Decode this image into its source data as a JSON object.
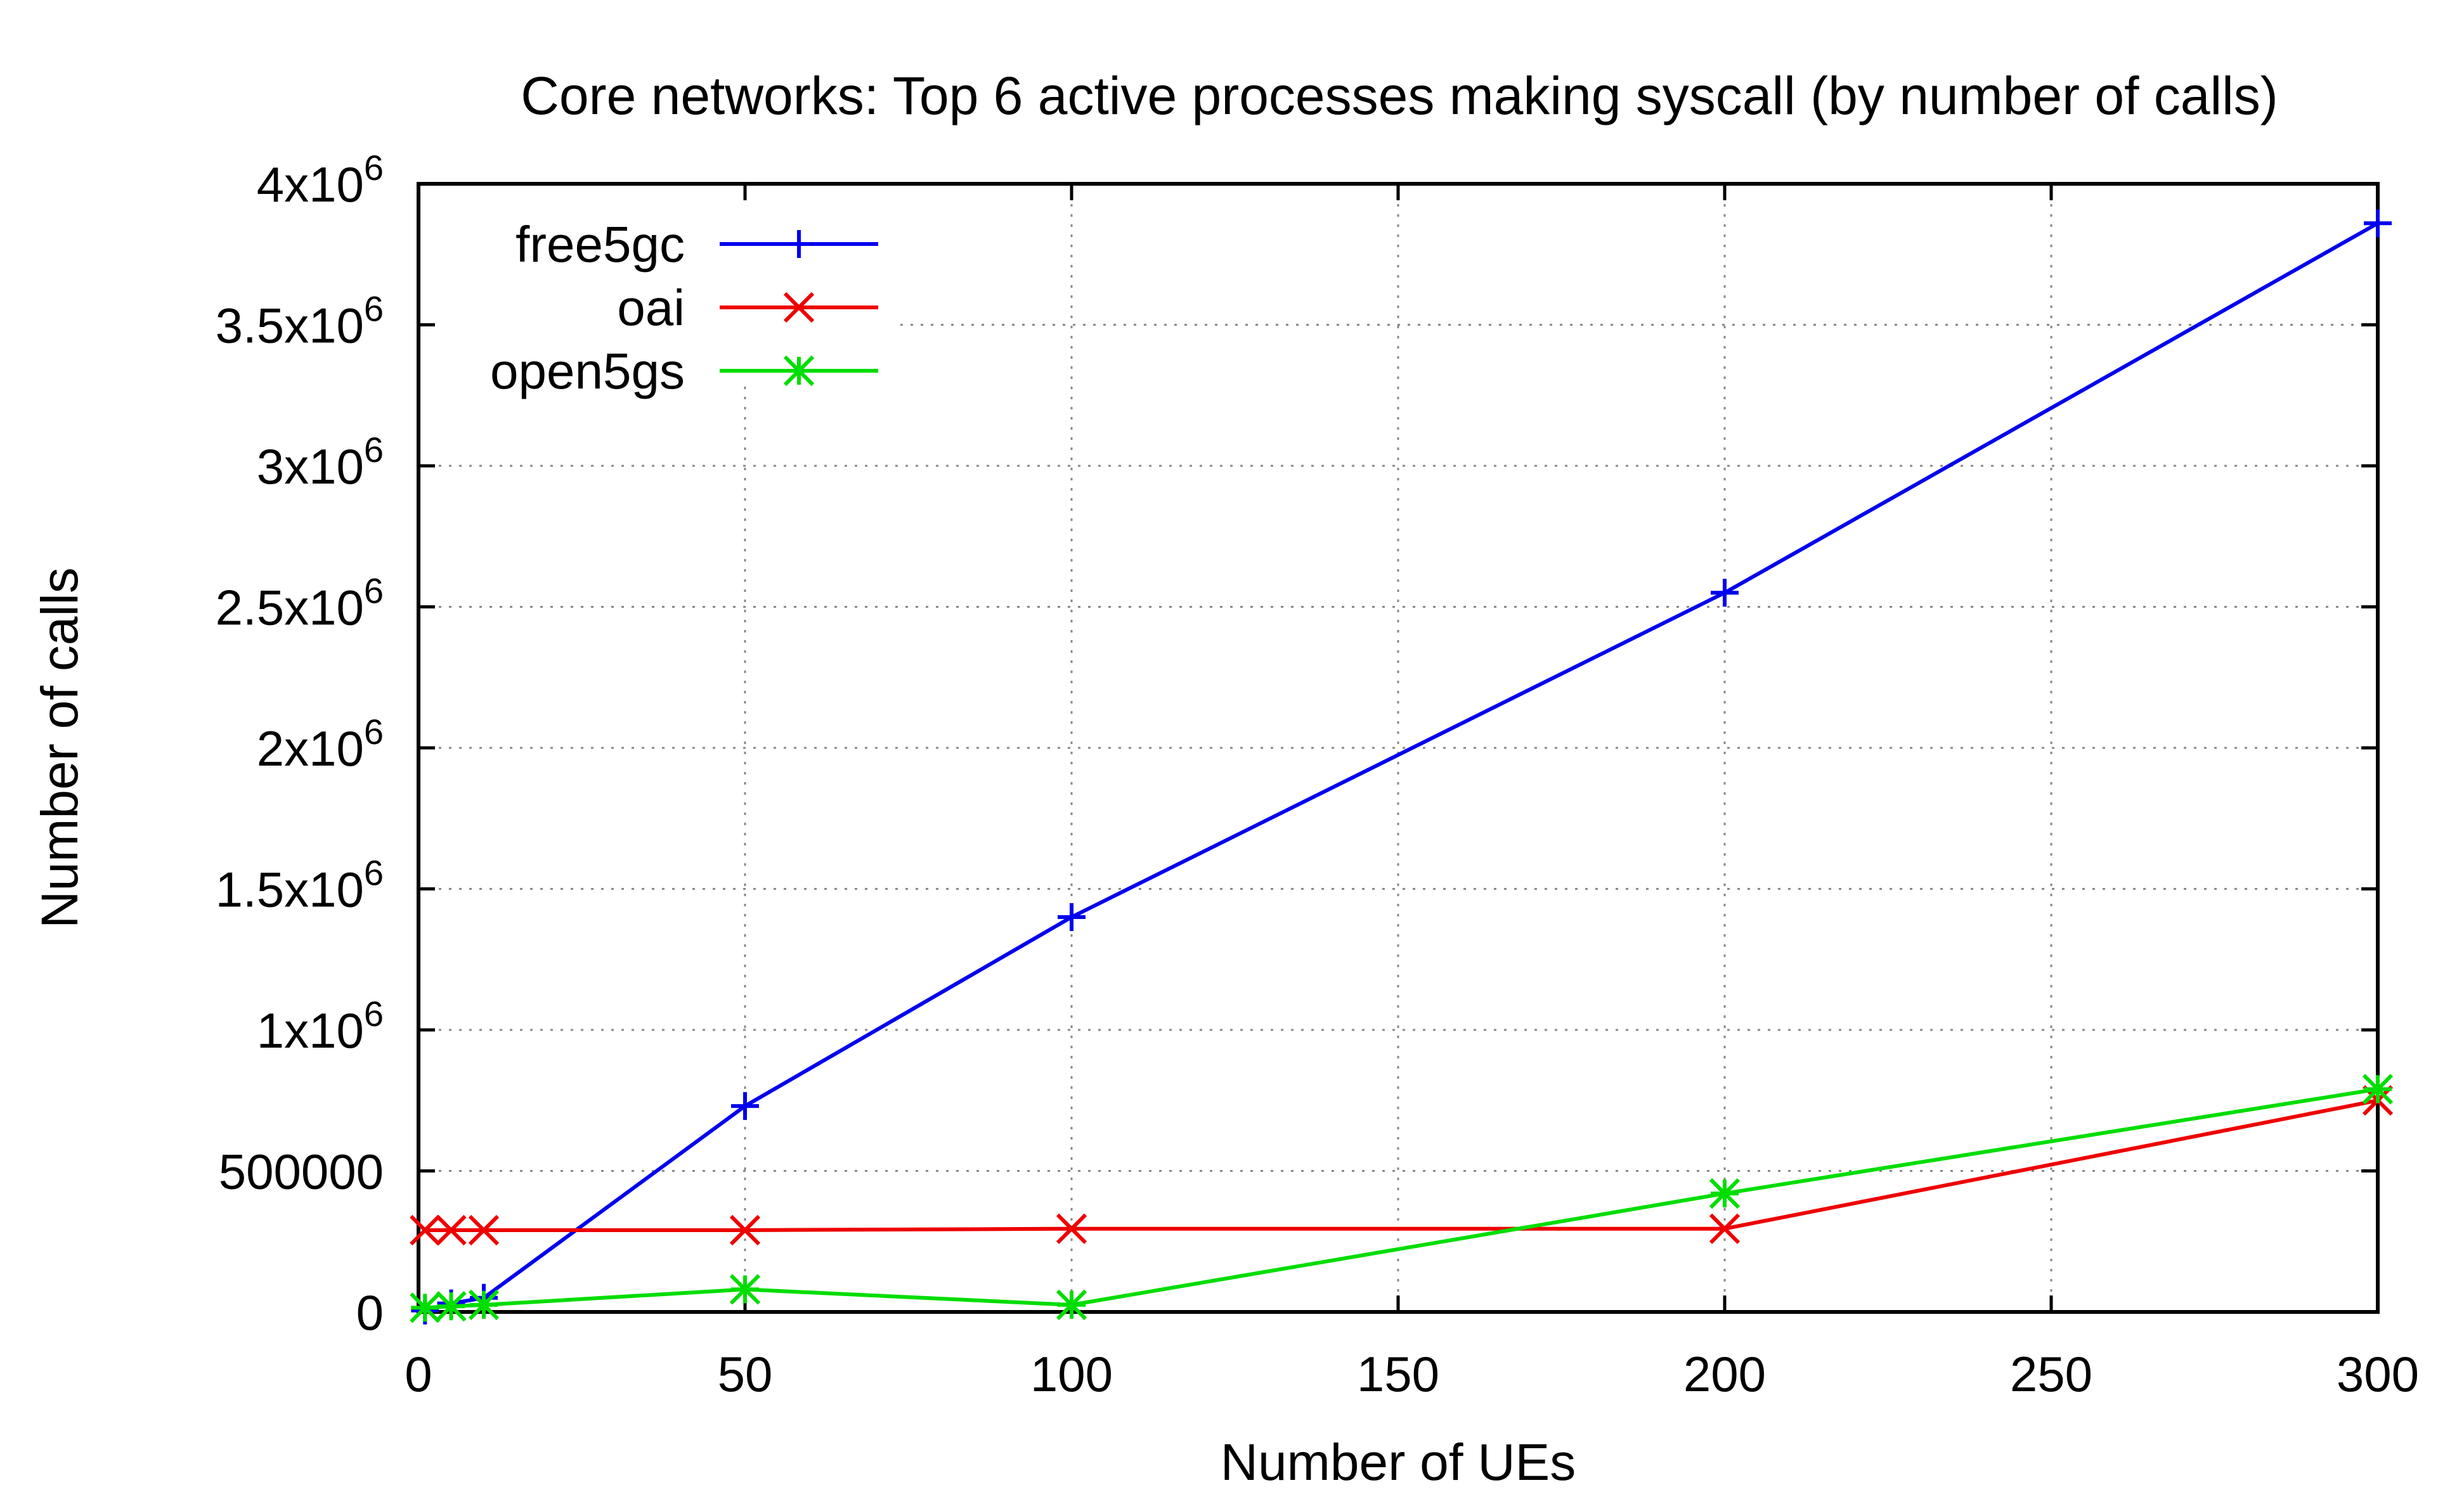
{
  "chart_data": {
    "type": "line",
    "title": "Core networks: Top 6 active processes making syscall (by number of calls)",
    "xlabel": "Number of UEs",
    "ylabel": "Number of calls",
    "xlim": [
      0,
      300
    ],
    "ylim": [
      0,
      4000000
    ],
    "x_ticks": [
      "0",
      "50",
      "100",
      "150",
      "200",
      "250",
      "300"
    ],
    "y_ticks": [
      {
        "base": "0",
        "exp": ""
      },
      {
        "base": "500000",
        "exp": ""
      },
      {
        "base": "1x10",
        "exp": "6"
      },
      {
        "base": "1.5x10",
        "exp": "6"
      },
      {
        "base": "2x10",
        "exp": "6"
      },
      {
        "base": "2.5x10",
        "exp": "6"
      },
      {
        "base": "3x10",
        "exp": "6"
      },
      {
        "base": "3.5x10",
        "exp": "6"
      },
      {
        "base": "4x10",
        "exp": "6"
      }
    ],
    "grid": true,
    "legend_position": "top-left",
    "series": [
      {
        "name": "free5gc",
        "color": "#0000ee",
        "marker": "plus",
        "x": [
          1,
          5,
          10,
          50,
          100,
          200,
          300
        ],
        "y": [
          5000,
          30000,
          50000,
          730000,
          1400000,
          2550000,
          3860000
        ]
      },
      {
        "name": "oai",
        "color": "#ee0000",
        "marker": "cross",
        "x": [
          1,
          5,
          10,
          50,
          100,
          200,
          300
        ],
        "y": [
          290000,
          290000,
          290000,
          290000,
          295000,
          295000,
          750000
        ]
      },
      {
        "name": "open5gs",
        "color": "#00dd00",
        "marker": "star",
        "x": [
          1,
          5,
          10,
          50,
          100,
          200,
          300
        ],
        "y": [
          15000,
          20000,
          25000,
          80000,
          25000,
          420000,
          790000
        ]
      }
    ]
  }
}
